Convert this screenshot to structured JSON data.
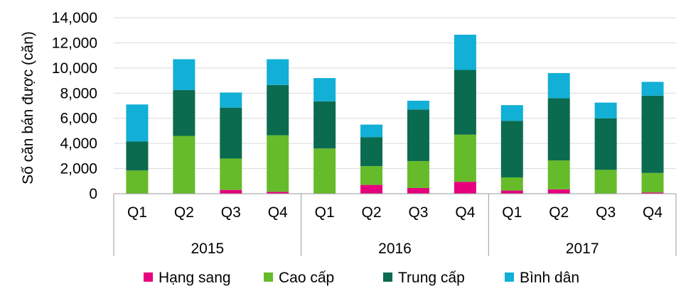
{
  "chart_data": {
    "type": "bar",
    "stacked": true,
    "ylabel": "Số căn bán được (căn)",
    "ylim": [
      0,
      14000
    ],
    "yticks": [
      "0",
      "2,000",
      "4,000",
      "6,000",
      "8,000",
      "10,000",
      "12,000",
      "14,000"
    ],
    "yticks_values": [
      0,
      2000,
      4000,
      6000,
      8000,
      10000,
      12000,
      14000
    ],
    "grid": true,
    "legend_position": "bottom",
    "categories": [
      "Q1",
      "Q2",
      "Q3",
      "Q4",
      "Q1",
      "Q2",
      "Q3",
      "Q4",
      "Q1",
      "Q2",
      "Q3",
      "Q4"
    ],
    "groups": [
      {
        "label": "2015",
        "count": 4
      },
      {
        "label": "2016",
        "count": 4
      },
      {
        "label": "2017",
        "count": 4
      }
    ],
    "series": [
      {
        "name": "Hạng sang",
        "color": "#e6007e",
        "values": [
          0,
          0,
          300,
          150,
          0,
          700,
          450,
          950,
          250,
          350,
          0,
          100
        ]
      },
      {
        "name": "Cao cấp",
        "color": "#66bb2a",
        "values": [
          1850,
          4600,
          2500,
          4500,
          3600,
          1500,
          2150,
          3750,
          1050,
          2300,
          1900,
          1550
        ]
      },
      {
        "name": "Trung cấp",
        "color": "#0a6b4f",
        "values": [
          2300,
          3650,
          4050,
          4000,
          3750,
          2300,
          4100,
          5150,
          4500,
          4950,
          4100,
          6150
        ]
      },
      {
        "name": "Bình dân",
        "color": "#12afd6",
        "values": [
          2950,
          2450,
          1200,
          2050,
          1850,
          1000,
          700,
          2800,
          1250,
          2000,
          1250,
          1100
        ]
      }
    ]
  }
}
